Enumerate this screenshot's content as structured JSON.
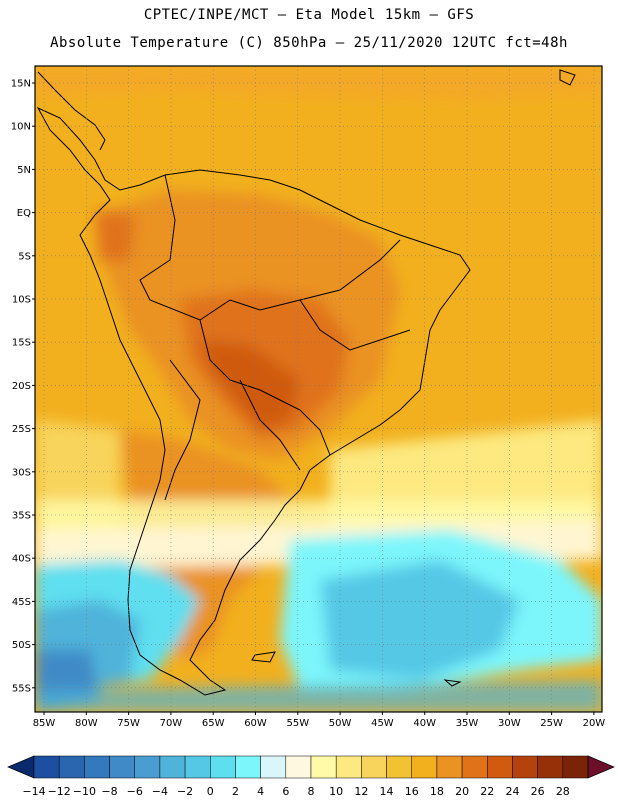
{
  "header": {
    "line1": "CPTEC/INPE/MCT –  Eta Model 15km – GFS",
    "line2": "Absolute Temperature (C) 850hPa – 25/11/2020 12UTC fct=48h"
  },
  "map": {
    "lat_labels": [
      "15N",
      "10N",
      "5N",
      "EQ",
      "5S",
      "10S",
      "15S",
      "20S",
      "25S",
      "30S",
      "35S",
      "40S",
      "45S",
      "50S",
      "55S"
    ],
    "lon_labels": [
      "85W",
      "80W",
      "75W",
      "70W",
      "65W",
      "60W",
      "55W",
      "50W",
      "45W",
      "40W",
      "35W",
      "30W",
      "25W",
      "20W"
    ],
    "background_color": "#f2b01e"
  },
  "colorbar": {
    "ticks": [
      "-14",
      "-12",
      "-10",
      "-8",
      "-6",
      "-4",
      "-2",
      "0",
      "2",
      "4",
      "6",
      "8",
      "10",
      "12",
      "14",
      "16",
      "18",
      "20",
      "22",
      "24",
      "26",
      "28"
    ],
    "colors": [
      "#1d4fa0",
      "#2a66b0",
      "#3478bd",
      "#3f8ac7",
      "#4a9dd1",
      "#4fb3da",
      "#55c8e6",
      "#5edff0",
      "#7cf6fb",
      "#d8f6fb",
      "#fff8e0",
      "#fffaa8",
      "#fde980",
      "#f8d45c",
      "#f2c233",
      "#f2b01e",
      "#ea9222",
      "#e0721a",
      "#cf5a10",
      "#b4420c",
      "#953008",
      "#7a2306"
    ],
    "under_color": "#0b2a6e",
    "over_color": "#6b0f2a"
  }
}
